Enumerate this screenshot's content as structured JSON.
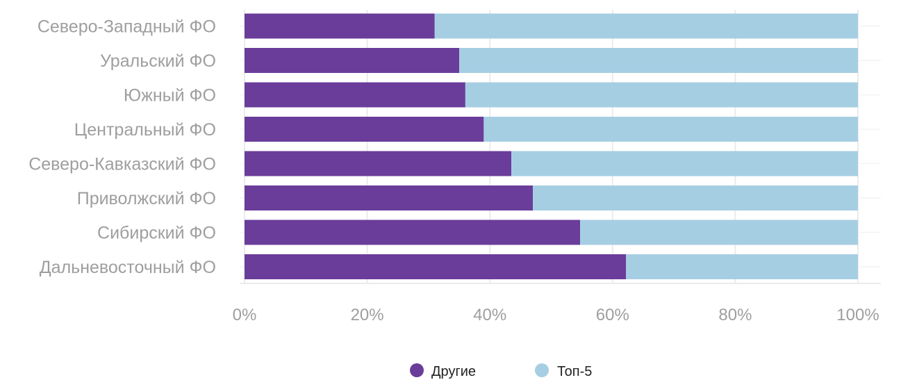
{
  "chart_data": {
    "type": "bar",
    "orientation": "horizontal",
    "stacked": true,
    "categories": [
      "Северо-Западный ФО",
      "Уральский ФО",
      "Южный ФО",
      "Центральный ФО",
      "Северо-Кавказский ФО",
      "Приволжский ФО",
      "Сибирский ФО",
      "Дальневосточный ФО"
    ],
    "series": [
      {
        "name": "Другие",
        "color": "#6a3d9a",
        "values": [
          31,
          35,
          36,
          39,
          43.5,
          47,
          54.7,
          62.2
        ]
      },
      {
        "name": "Топ-5",
        "color": "#a6cee3",
        "values": [
          69,
          65,
          64,
          61,
          56.5,
          53,
          45.3,
          37.8
        ]
      }
    ],
    "xlim": [
      0,
      100
    ],
    "x_ticks": [
      "0%",
      "20%",
      "40%",
      "60%",
      "80%",
      "100%"
    ],
    "x_tick_values": [
      0,
      20,
      40,
      60,
      80,
      100
    ],
    "grid": true,
    "legend_position": "bottom"
  }
}
